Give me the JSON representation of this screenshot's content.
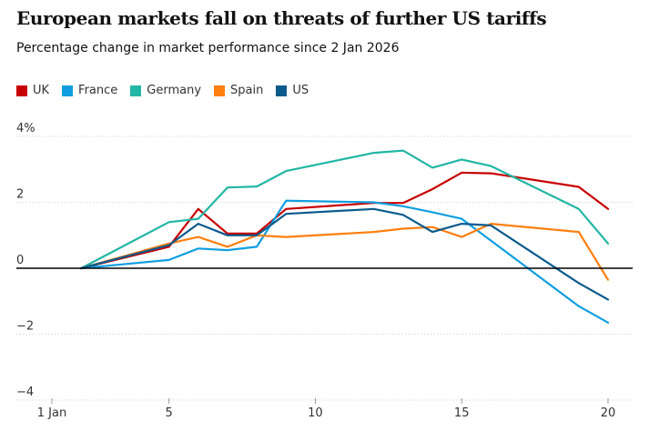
{
  "chart_data": {
    "type": "line",
    "title": "European markets fall on threats of further US tariffs",
    "subtitle": "Percentage change in market performance since 2 Jan 2026",
    "xlabel": "",
    "ylabel": "",
    "xlim": [
      1,
      20
    ],
    "ylim": [
      -4,
      4
    ],
    "x_ticks": [
      {
        "value": 1,
        "label": "1 Jan"
      },
      {
        "value": 5,
        "label": "5"
      },
      {
        "value": 10,
        "label": "10"
      },
      {
        "value": 15,
        "label": "15"
      },
      {
        "value": 20,
        "label": "20"
      }
    ],
    "y_ticks": [
      {
        "value": 4,
        "label": "4%"
      },
      {
        "value": 2,
        "label": "2"
      },
      {
        "value": 0,
        "label": "0"
      },
      {
        "value": -2,
        "label": "−2"
      },
      {
        "value": -4,
        "label": "−4"
      }
    ],
    "grid": true,
    "legend_position": "top-left",
    "series": [
      {
        "name": "UK",
        "color": "#c70000",
        "points": [
          [
            2,
            0
          ],
          [
            5,
            0.65
          ],
          [
            6,
            1.8
          ],
          [
            7,
            1.05
          ],
          [
            8,
            1.05
          ],
          [
            9,
            1.8
          ],
          [
            12,
            1.98
          ],
          [
            13,
            1.98
          ],
          [
            14,
            2.4
          ],
          [
            15,
            2.9
          ],
          [
            16,
            2.88
          ],
          [
            19,
            2.47
          ],
          [
            20,
            1.8
          ]
        ]
      },
      {
        "name": "France",
        "color": "#0f9fe0",
        "points": [
          [
            2,
            0
          ],
          [
            5,
            0.25
          ],
          [
            6,
            0.6
          ],
          [
            7,
            0.55
          ],
          [
            8,
            0.65
          ],
          [
            9,
            2.05
          ],
          [
            12,
            2.0
          ],
          [
            13,
            1.88
          ],
          [
            14,
            1.7
          ],
          [
            15,
            1.5
          ],
          [
            19,
            -1.15
          ],
          [
            20,
            -1.65
          ]
        ]
      },
      {
        "name": "Germany",
        "color": "#22b6a5",
        "points": [
          [
            2,
            0
          ],
          [
            5,
            1.4
          ],
          [
            6,
            1.5
          ],
          [
            7,
            2.45
          ],
          [
            8,
            2.48
          ],
          [
            9,
            2.95
          ],
          [
            12,
            3.5
          ],
          [
            13,
            3.57
          ],
          [
            14,
            3.05
          ],
          [
            15,
            3.3
          ],
          [
            16,
            3.1
          ],
          [
            19,
            1.8
          ],
          [
            20,
            0.75
          ]
        ]
      },
      {
        "name": "Spain",
        "color": "#ff7f0f",
        "points": [
          [
            2,
            0
          ],
          [
            5,
            0.75
          ],
          [
            6,
            0.95
          ],
          [
            7,
            0.65
          ],
          [
            8,
            1.0
          ],
          [
            9,
            0.95
          ],
          [
            12,
            1.1
          ],
          [
            13,
            1.2
          ],
          [
            14,
            1.25
          ],
          [
            15,
            0.95
          ],
          [
            16,
            1.35
          ],
          [
            19,
            1.1
          ],
          [
            20,
            -0.35
          ]
        ]
      },
      {
        "name": "US",
        "color": "#0a5b8c",
        "points": [
          [
            2,
            0
          ],
          [
            5,
            0.7
          ],
          [
            6,
            1.35
          ],
          [
            7,
            1.0
          ],
          [
            8,
            1.0
          ],
          [
            9,
            1.65
          ],
          [
            12,
            1.8
          ],
          [
            13,
            1.62
          ],
          [
            14,
            1.1
          ],
          [
            15,
            1.35
          ],
          [
            16,
            1.3
          ],
          [
            19,
            -0.45
          ],
          [
            20,
            -0.95
          ]
        ]
      }
    ]
  }
}
